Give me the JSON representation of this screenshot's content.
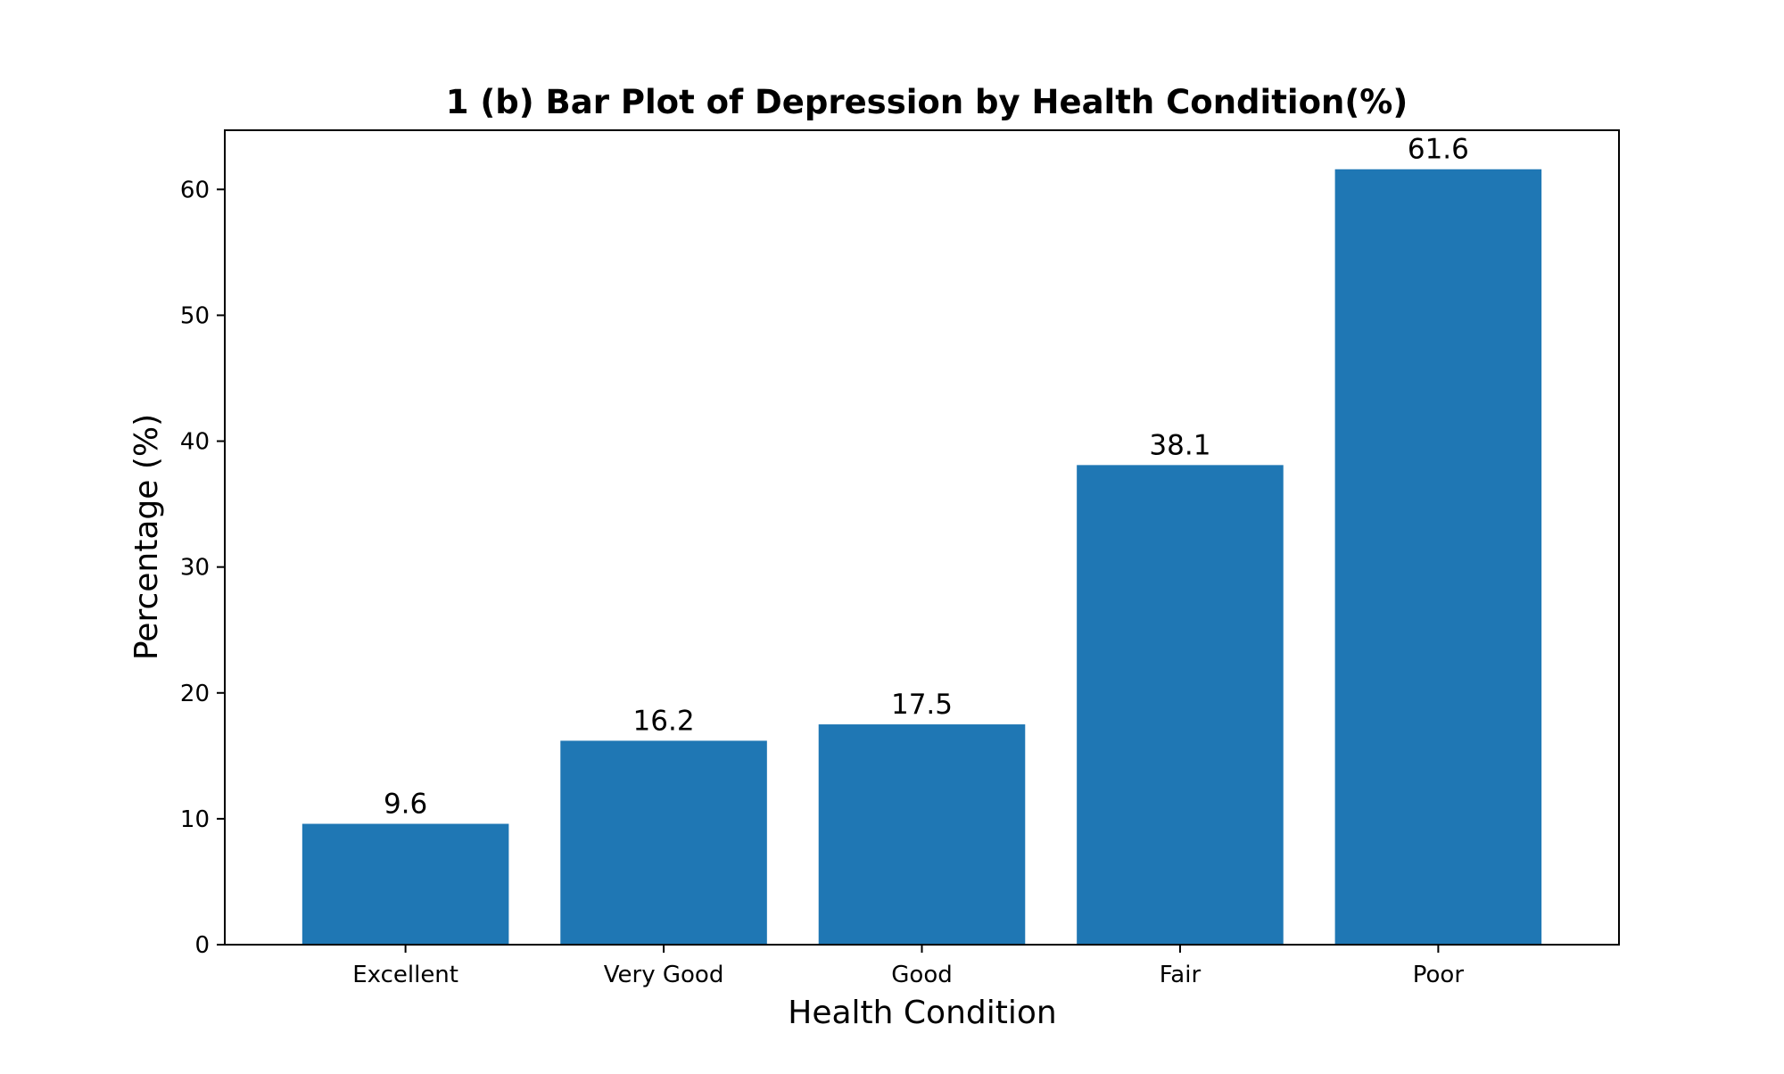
{
  "chart_data": {
    "type": "bar",
    "title": "1 (b) Bar Plot of Depression by Health Condition(%)",
    "xlabel": "Health Condition",
    "ylabel": "Percentage (%)",
    "categories": [
      "Excellent",
      "Very Good",
      "Good",
      "Fair",
      "Poor"
    ],
    "values": [
      9.6,
      16.2,
      17.5,
      38.1,
      61.6
    ],
    "data_labels": [
      "9.6",
      "16.2",
      "17.5",
      "38.1",
      "61.6"
    ],
    "ylim": [
      0,
      64.7
    ],
    "yticks": [
      0,
      10,
      20,
      30,
      40,
      50,
      60
    ],
    "grid": false,
    "legend": "none",
    "bar_color": "#1f77b4"
  }
}
